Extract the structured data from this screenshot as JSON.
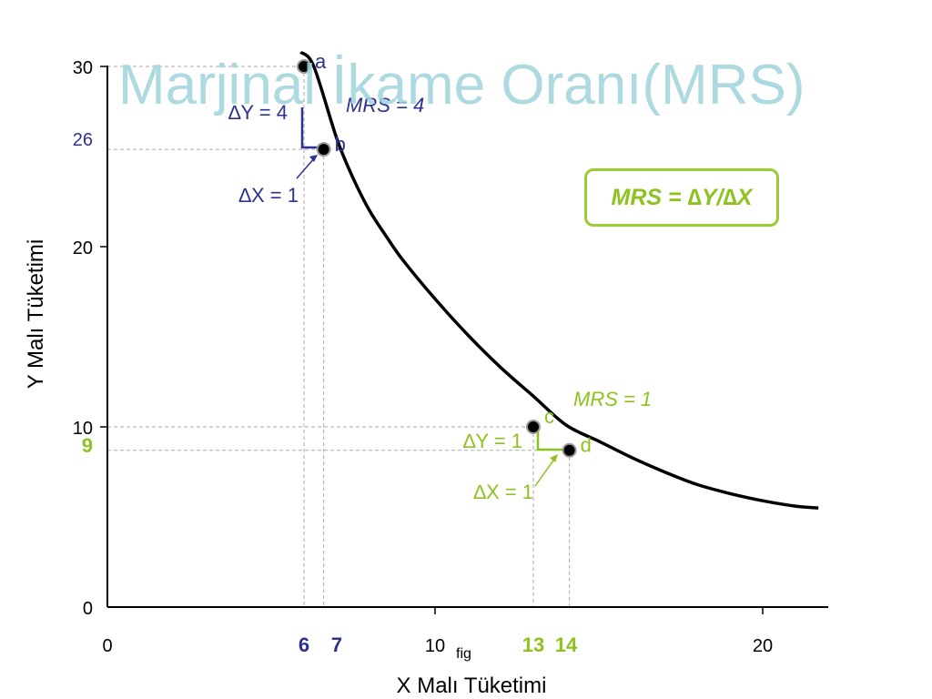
{
  "title": "Marjinal İkame Oranı(MRS)",
  "formula_box": "MRS = ∆Y/∆X",
  "colors": {
    "blue": "#2e3192",
    "green": "#8dc21f",
    "curve": "#000000",
    "grid": "#aaaaaa",
    "title": "#9fd4dc"
  },
  "chart_data": {
    "type": "line",
    "xlabel": "X Malı Tüketimi",
    "ylabel": "Y Malı Tüketimi",
    "xlim": [
      0,
      22
    ],
    "ylim": [
      0,
      30
    ],
    "x_ticks": [
      {
        "value": 0,
        "label": "0",
        "color": "#000000",
        "bold": false
      },
      {
        "value": 6,
        "label": "6",
        "color": "#2e3192",
        "bold": true
      },
      {
        "value": 7,
        "label": "7",
        "color": "#2e3192",
        "bold": true
      },
      {
        "value": 10,
        "label": "10",
        "color": "#000000",
        "bold": false
      },
      {
        "value": 13,
        "label": "13",
        "color": "#8dc21f",
        "bold": true
      },
      {
        "value": 14,
        "label": "14",
        "color": "#8dc21f",
        "bold": true
      },
      {
        "value": 20,
        "label": "20",
        "color": "#000000",
        "bold": false
      }
    ],
    "x_tick_marks": [
      10,
      20
    ],
    "y_ticks": [
      {
        "value": 0,
        "label": "0",
        "color": "#000000",
        "bold": false
      },
      {
        "value": 9,
        "label": "9",
        "color": "#8dc21f",
        "bold": true
      },
      {
        "value": 10,
        "label": "10",
        "color": "#000000",
        "bold": false
      },
      {
        "value": 20,
        "label": "20",
        "color": "#000000",
        "bold": false
      },
      {
        "value": 26,
        "label": "26",
        "color": "#2e3192",
        "bold": false
      },
      {
        "value": 30,
        "label": "30",
        "color": "#000000",
        "bold": false
      }
    ],
    "y_tick_marks": [
      10,
      20,
      30
    ],
    "x_annotation": "fig",
    "curve": {
      "x": [
        5.9,
        6.3,
        7,
        7.5,
        8,
        8.5,
        9,
        10,
        11,
        12,
        13,
        14,
        15,
        16,
        17,
        18,
        19,
        20,
        21,
        21.7
      ],
      "y": [
        30.8,
        30,
        26,
        23.8,
        22,
        20.6,
        19.3,
        17.1,
        15.1,
        13.3,
        11.7,
        10.1,
        9.2,
        8.3,
        7.5,
        6.8,
        6.3,
        5.9,
        5.6,
        5.5
      ]
    },
    "points": [
      {
        "label": "a",
        "x": 6,
        "y": 30,
        "color": "#2e3192"
      },
      {
        "label": "b",
        "x": 6.6,
        "y": 25.4,
        "color": "#2e3192"
      },
      {
        "label": "c",
        "x": 13,
        "y": 10,
        "color": "#8dc21f"
      },
      {
        "label": "d",
        "x": 14.1,
        "y": 8.7,
        "color": "#8dc21f"
      }
    ],
    "annotations": {
      "dy_blue": "∆Y = 4",
      "dx_blue": "∆X = 1",
      "mrs_blue": "MRS = 4",
      "dy_green": "∆Y = 1",
      "dx_green": "∆X = 1",
      "mrs_green": "MRS = 1"
    }
  }
}
